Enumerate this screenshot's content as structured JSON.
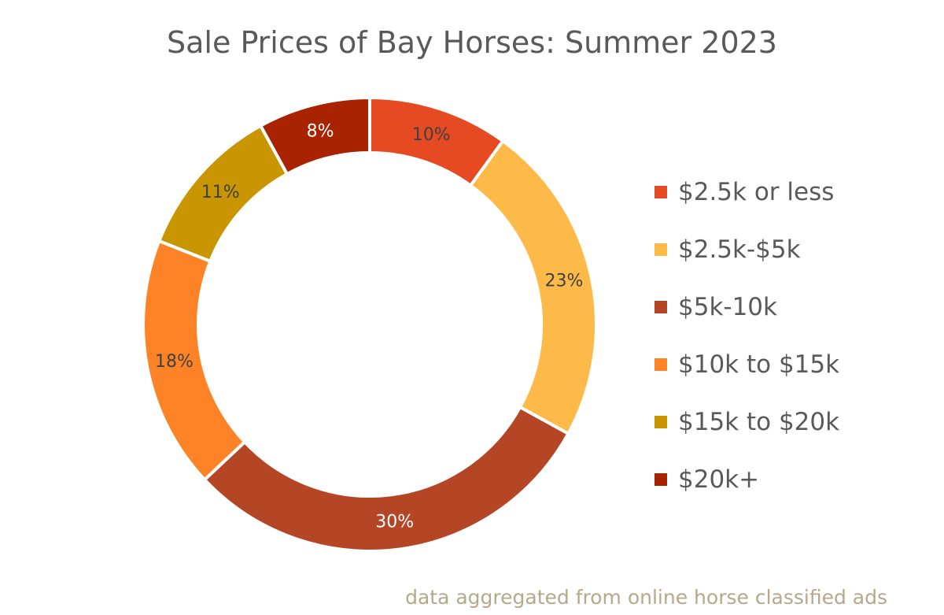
{
  "chart_data": {
    "type": "donut",
    "title": "Sale Prices of Bay Horses: Summer 2023",
    "note": "data aggregated from online horse classified ads",
    "legend_position": "right",
    "slices": [
      {
        "label": "$2.5k or less",
        "value": 10,
        "value_label": "10%",
        "color": "#E64A22",
        "label_color": "#404040"
      },
      {
        "label": "$2.5k-$5k",
        "value": 23,
        "value_label": "23%",
        "color": "#FDBA48",
        "label_color": "#404040"
      },
      {
        "label": "$5k-10k",
        "value": 30,
        "value_label": "30%",
        "color": "#B54625",
        "label_color": "#ffffff"
      },
      {
        "label": "$10k to $15k",
        "value": 18,
        "value_label": "18%",
        "color": "#FD8326",
        "label_color": "#404040"
      },
      {
        "label": "$15k to $20k",
        "value": 11,
        "value_label": "11%",
        "color": "#C99500",
        "label_color": "#404040"
      },
      {
        "label": "$20k+",
        "value": 8,
        "value_label": "8%",
        "color": "#AA2300",
        "label_color": "#ffffff"
      }
    ]
  }
}
